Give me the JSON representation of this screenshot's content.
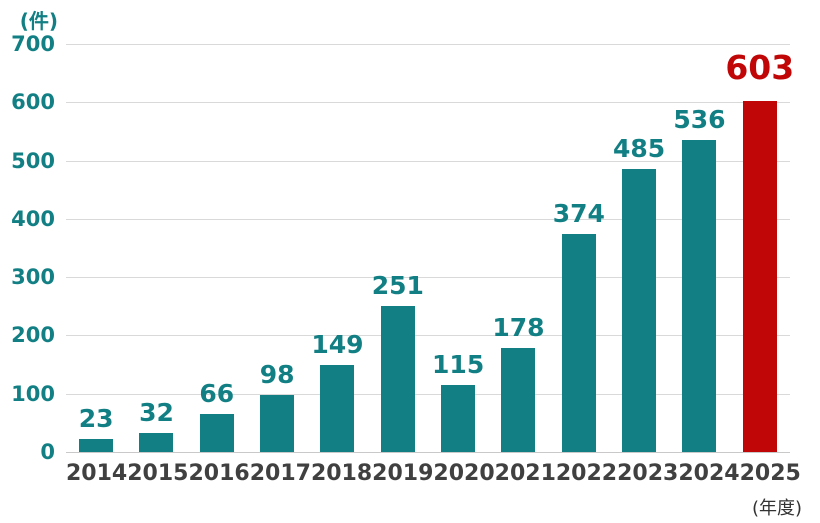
{
  "chart_data": {
    "type": "bar",
    "title": "",
    "unit_label": "(件)",
    "xaxis_unit_label": "(年度)",
    "categories": [
      "2014",
      "2015",
      "2016",
      "2017",
      "2018",
      "2019",
      "2020",
      "2021",
      "2022",
      "2023",
      "2024",
      "2025"
    ],
    "values": [
      23,
      32,
      66,
      98,
      149,
      251,
      115,
      178,
      374,
      485,
      536,
      603
    ],
    "highlight_index": 11,
    "ylim": [
      0,
      700
    ],
    "yticks": [
      0,
      100,
      200,
      300,
      400,
      500,
      600,
      700
    ],
    "grid": "horizontal",
    "legend": "none",
    "data_labels": "above-bars",
    "colors": {
      "bar": "#117F83",
      "bar_highlight": "#C00606",
      "value_label": "#117F83",
      "value_label_highlight": "#C00606",
      "y_tick_label": "#117F83",
      "x_tick_label": "#404040",
      "gridline": "#D9D9D9"
    }
  }
}
